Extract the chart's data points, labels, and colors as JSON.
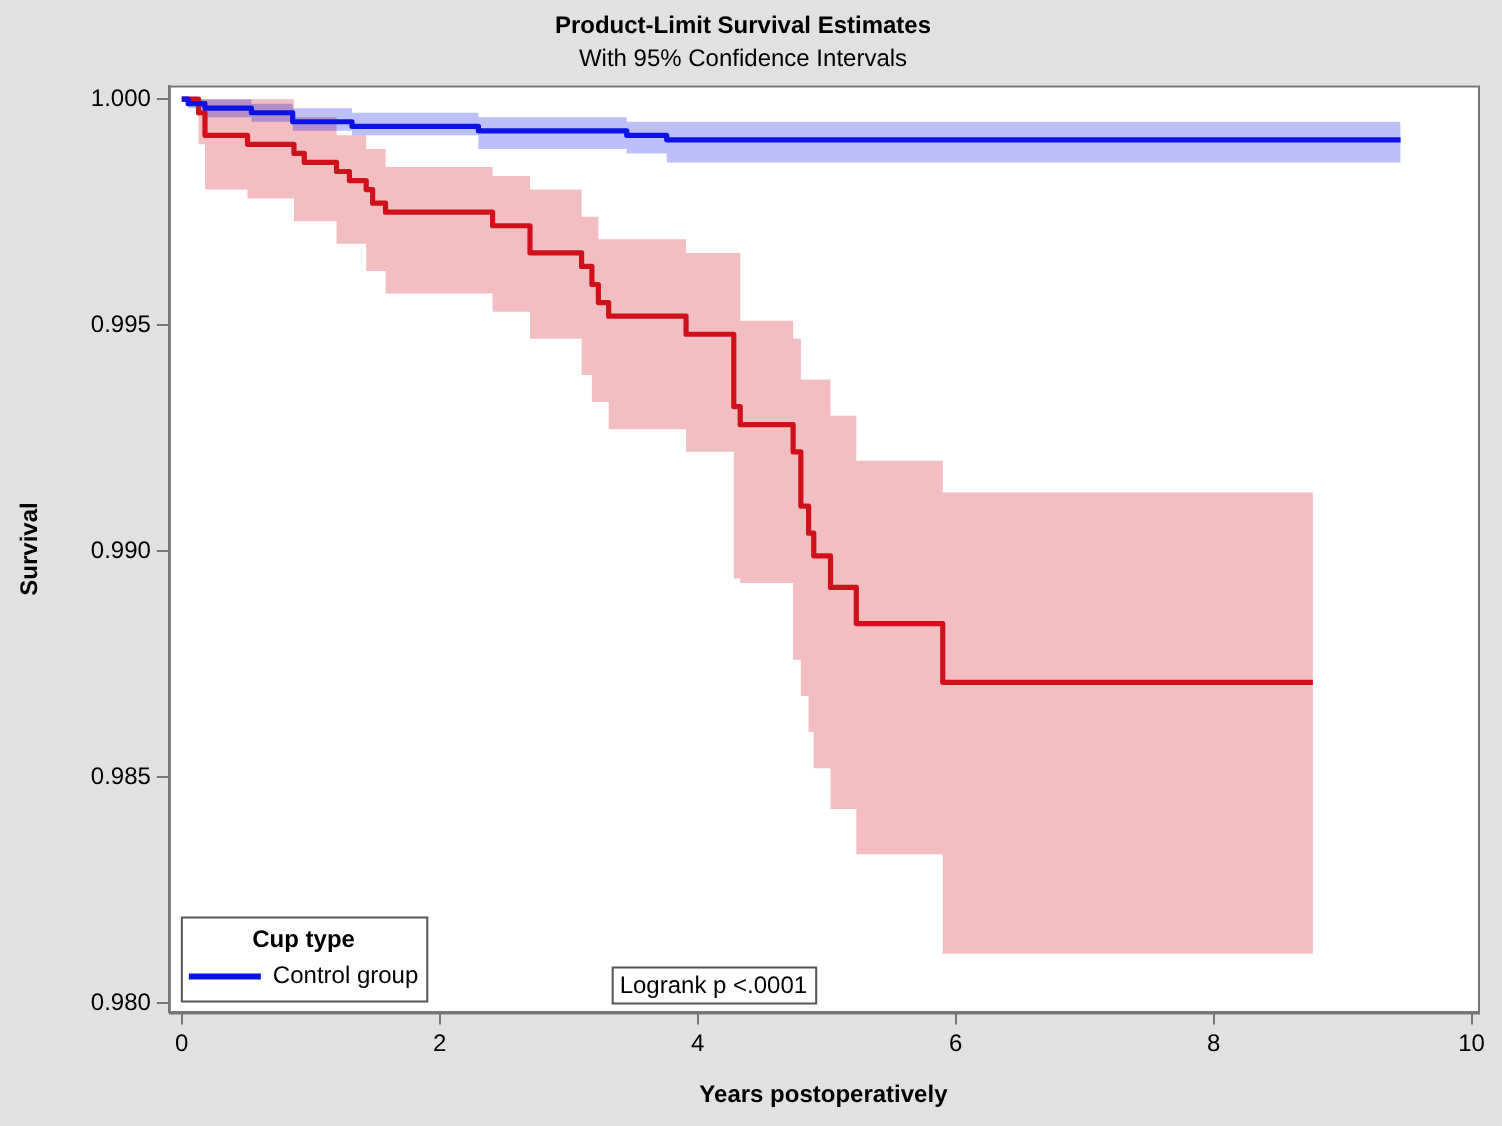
{
  "chart_data": {
    "type": "step",
    "title": "Product-Limit Survival Estimates",
    "subtitle": "With 95% Confidence Intervals",
    "xlabel": "Years postoperatively",
    "ylabel": "Survival",
    "legend_title": "Cup type",
    "legend": "bottom left",
    "grid": false,
    "marker": "none",
    "xlim": [
      -0.1,
      10.05
    ],
    "xticks": [
      0,
      2,
      4,
      6,
      8,
      10
    ],
    "ylim": [
      0.9798,
      1.0003
    ],
    "yticks": [
      {
        "value": 0.98,
        "label": "0.980"
      },
      {
        "value": 0.985,
        "label": "0.985"
      },
      {
        "value": 0.99,
        "label": "0.990"
      },
      {
        "value": 0.995,
        "label": "0.995"
      },
      {
        "value": 1,
        "label": "1.000"
      }
    ],
    "annotations": [
      "Logrank p <.0001"
    ],
    "series": [
      {
        "name": "Control group",
        "color": "#0a14e6",
        "x": [
          0,
          0.05,
          0.18,
          0.54,
          0.86,
          1.32,
          2.3,
          3.45,
          3.76,
          9.45
        ],
        "values": [
          1.0,
          0.9999,
          0.9998,
          0.9997,
          0.9995,
          0.9994,
          0.9993,
          0.9992,
          0.9991,
          0.9991
        ],
        "lower": [
          1.0,
          0.9998,
          0.9996,
          0.9995,
          0.9993,
          0.9992,
          0.9989,
          0.9988,
          0.9986,
          0.9986
        ],
        "upper": [
          1.0,
          1.0,
          1.0,
          0.9999,
          0.9998,
          0.9997,
          0.9996,
          0.9995,
          0.9995,
          0.9995
        ]
      },
      {
        "color": "#d0101a",
        "x": [
          0,
          0.13,
          0.18,
          0.51,
          0.87,
          0.95,
          1.2,
          1.3,
          1.43,
          1.48,
          1.58,
          2.41,
          2.7,
          3.1,
          3.18,
          3.23,
          3.31,
          3.91,
          4.28,
          4.33,
          4.74,
          4.8,
          4.86,
          4.9,
          5.03,
          5.23,
          5.9,
          8.77
        ],
        "values": [
          1.0,
          0.9997,
          0.9992,
          0.999,
          0.9988,
          0.9986,
          0.9984,
          0.9982,
          0.998,
          0.9977,
          0.9975,
          0.9972,
          0.9966,
          0.9963,
          0.9959,
          0.9955,
          0.9952,
          0.9948,
          0.9932,
          0.9928,
          0.9922,
          0.991,
          0.9904,
          0.9899,
          0.9892,
          0.9884,
          0.9871,
          0.9871
        ],
        "lower": [
          1.0,
          0.999,
          0.998,
          0.9978,
          0.9973,
          0.9973,
          0.9968,
          0.9968,
          0.9962,
          0.9962,
          0.9957,
          0.9953,
          0.9947,
          0.9939,
          0.9933,
          0.9933,
          0.9927,
          0.9922,
          0.9894,
          0.9893,
          0.9876,
          0.9868,
          0.986,
          0.9852,
          0.9843,
          0.9833,
          0.9811,
          0.9811
        ],
        "upper": [
          1.0,
          1.0,
          1.0,
          1.0,
          0.9996,
          0.9996,
          0.9992,
          0.9992,
          0.9989,
          0.9989,
          0.9985,
          0.9983,
          0.998,
          0.9974,
          0.9974,
          0.9969,
          0.9969,
          0.9966,
          0.9966,
          0.9951,
          0.9947,
          0.9938,
          0.9938,
          0.9938,
          0.993,
          0.992,
          0.9913,
          0.9913
        ]
      }
    ]
  }
}
